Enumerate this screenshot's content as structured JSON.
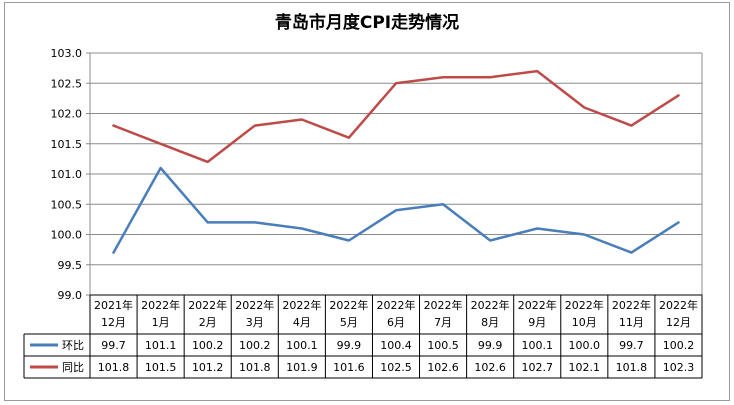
{
  "chart_data": {
    "type": "line",
    "title": "青岛市月度CPI走势情况",
    "categories": [
      [
        "2021年",
        "12月"
      ],
      [
        "2022年",
        "1月"
      ],
      [
        "2022年",
        "2月"
      ],
      [
        "2022年",
        "3月"
      ],
      [
        "2022年",
        "4月"
      ],
      [
        "2022年",
        "5月"
      ],
      [
        "2022年",
        "6月"
      ],
      [
        "2022年",
        "7月"
      ],
      [
        "2022年",
        "8月"
      ],
      [
        "2022年",
        "9月"
      ],
      [
        "2022年",
        "10月"
      ],
      [
        "2022年",
        "11月"
      ],
      [
        "2022年",
        "12月"
      ]
    ],
    "series": [
      {
        "name": "环比",
        "color": "#4a7ebb",
        "values": [
          99.7,
          101.1,
          100.2,
          100.2,
          100.1,
          99.9,
          100.4,
          100.5,
          99.9,
          100.1,
          100.0,
          99.7,
          100.2
        ],
        "labels": [
          "99.7",
          "101.1",
          "100.2",
          "100.2",
          "100.1",
          "99.9",
          "100.4",
          "100.5",
          "99.9",
          "100.1",
          "100.0",
          "99.7",
          "100.2"
        ]
      },
      {
        "name": "同比",
        "color": "#be4b48",
        "values": [
          101.8,
          101.5,
          101.2,
          101.8,
          101.9,
          101.6,
          102.5,
          102.6,
          102.6,
          102.7,
          102.1,
          101.8,
          102.3
        ],
        "labels": [
          "101.8",
          "101.5",
          "101.2",
          "101.8",
          "101.9",
          "101.6",
          "102.5",
          "102.6",
          "102.6",
          "102.7",
          "102.1",
          "101.8",
          "102.3"
        ]
      }
    ],
    "ylim": [
      99.0,
      103.0
    ],
    "yticks": [
      "99.0",
      "99.5",
      "100.0",
      "100.5",
      "101.0",
      "101.5",
      "102.0",
      "102.5",
      "103.0"
    ],
    "grid": true,
    "legend": "data-table"
  }
}
